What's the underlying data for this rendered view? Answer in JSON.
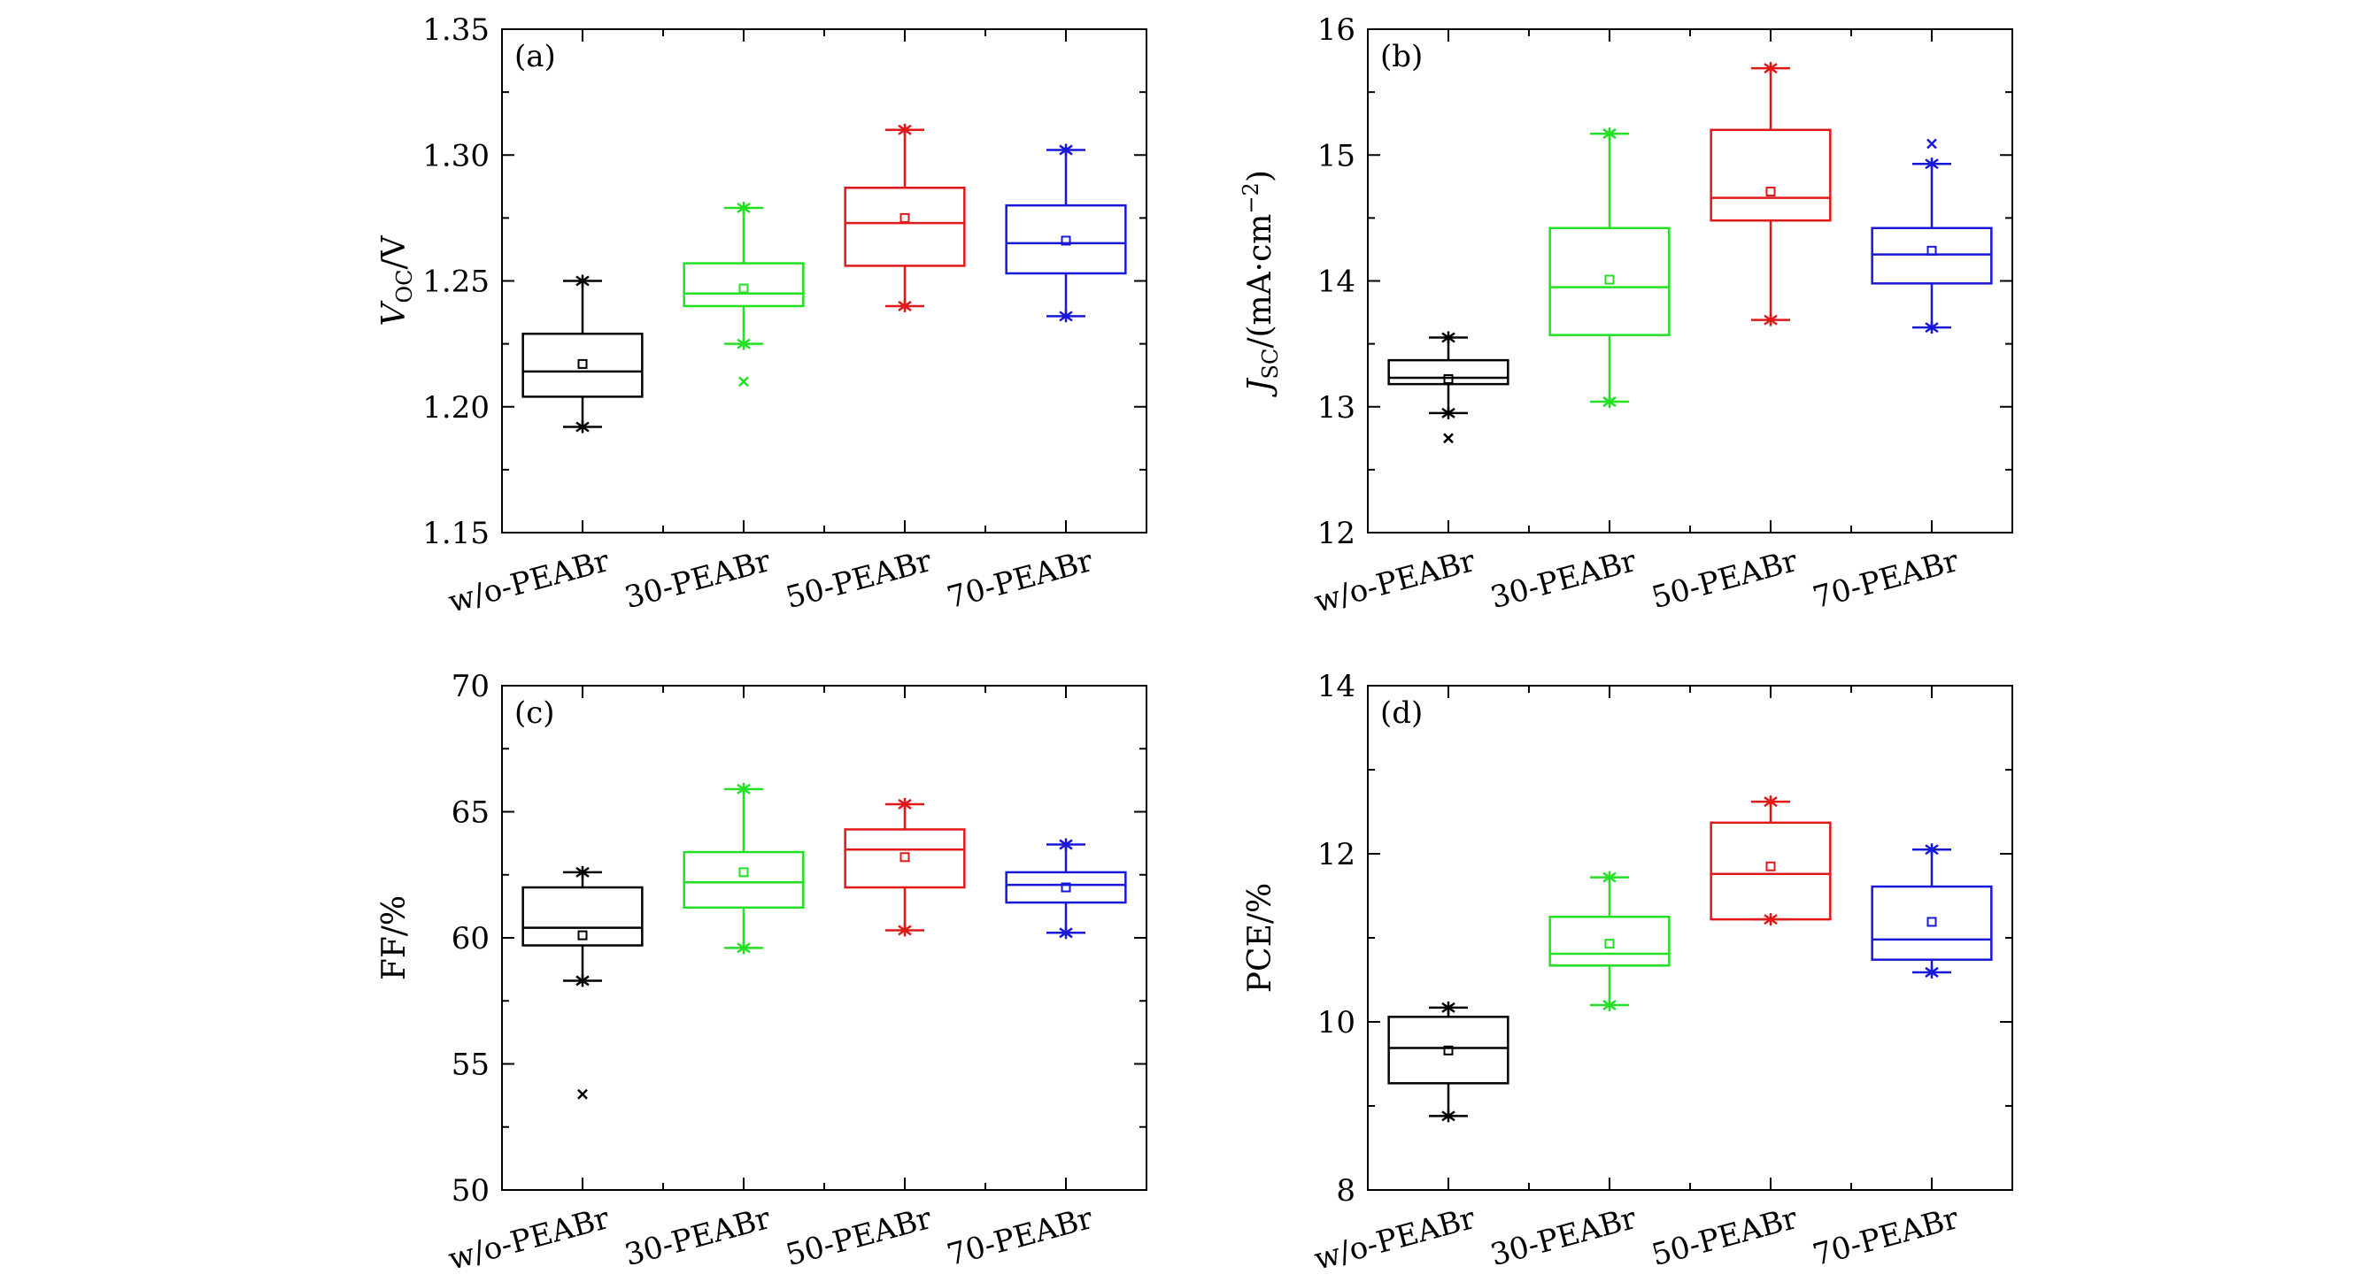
{
  "chart_data": [
    {
      "panel": "(a)",
      "type": "box",
      "ylabel_main": "V",
      "ylabel_sub": "OC",
      "ylabel_rest": "/V",
      "ylim": [
        1.15,
        1.35
      ],
      "yticks": [
        "1.15",
        "1.20",
        "1.25",
        "1.30",
        "1.35"
      ],
      "ytick_values": [
        1.15,
        1.2,
        1.25,
        1.3,
        1.35
      ],
      "categories": [
        "w/o-PEABr",
        "30-PEABr",
        "50-PEABr",
        "70-PEABr"
      ],
      "colors": [
        "#000000",
        "#22e022",
        "#e01818",
        "#1818d8"
      ],
      "boxes": [
        {
          "q1": 1.204,
          "median": 1.214,
          "q3": 1.229,
          "mean": 1.217,
          "whisker_low": 1.192,
          "whisker_high": 1.25,
          "outliers": []
        },
        {
          "q1": 1.24,
          "median": 1.245,
          "q3": 1.257,
          "mean": 1.247,
          "whisker_low": 1.225,
          "whisker_high": 1.279,
          "outliers": [
            1.21
          ]
        },
        {
          "q1": 1.256,
          "median": 1.273,
          "q3": 1.287,
          "mean": 1.275,
          "whisker_low": 1.24,
          "whisker_high": 1.31,
          "outliers": []
        },
        {
          "q1": 1.253,
          "median": 1.265,
          "q3": 1.28,
          "mean": 1.266,
          "whisker_low": 1.236,
          "whisker_high": 1.302,
          "outliers": []
        }
      ]
    },
    {
      "panel": "(b)",
      "type": "box",
      "ylabel_main": "J",
      "ylabel_sub": "SC",
      "ylabel_rest": "/(mA·cm",
      "ylabel_sup": "−2",
      "ylabel_tail": ")",
      "ylim": [
        12,
        16
      ],
      "yticks": [
        "12",
        "13",
        "14",
        "15",
        "16"
      ],
      "ytick_values": [
        12,
        13,
        14,
        15,
        16
      ],
      "categories": [
        "w/o-PEABr",
        "30-PEABr",
        "50-PEABr",
        "70-PEABr"
      ],
      "colors": [
        "#000000",
        "#22e022",
        "#e01818",
        "#1818d8"
      ],
      "boxes": [
        {
          "q1": 13.18,
          "median": 13.23,
          "q3": 13.37,
          "mean": 13.22,
          "whisker_low": 12.95,
          "whisker_high": 13.55,
          "outliers": [
            12.75
          ]
        },
        {
          "q1": 13.57,
          "median": 13.95,
          "q3": 14.42,
          "mean": 14.01,
          "whisker_low": 13.04,
          "whisker_high": 15.17,
          "outliers": []
        },
        {
          "q1": 14.48,
          "median": 14.66,
          "q3": 15.2,
          "mean": 14.71,
          "whisker_low": 13.69,
          "whisker_high": 15.69,
          "outliers": []
        },
        {
          "q1": 13.98,
          "median": 14.21,
          "q3": 14.42,
          "mean": 14.24,
          "whisker_low": 13.63,
          "whisker_high": 14.93,
          "outliers": [
            15.09
          ]
        }
      ]
    },
    {
      "panel": "(c)",
      "type": "box",
      "ylabel_main": "FF/%",
      "ylim": [
        50,
        70
      ],
      "yticks": [
        "50",
        "55",
        "60",
        "65",
        "70"
      ],
      "ytick_values": [
        50,
        55,
        60,
        65,
        70
      ],
      "categories": [
        "w/o-PEABr",
        "30-PEABr",
        "50-PEABr",
        "70-PEABr"
      ],
      "colors": [
        "#000000",
        "#22e022",
        "#e01818",
        "#1818d8"
      ],
      "boxes": [
        {
          "q1": 59.7,
          "median": 60.4,
          "q3": 62.0,
          "mean": 60.1,
          "whisker_low": 58.3,
          "whisker_high": 62.6,
          "outliers": [
            53.8
          ]
        },
        {
          "q1": 61.2,
          "median": 62.2,
          "q3": 63.4,
          "mean": 62.6,
          "whisker_low": 59.6,
          "whisker_high": 65.9,
          "outliers": []
        },
        {
          "q1": 62.0,
          "median": 63.5,
          "q3": 64.3,
          "mean": 63.2,
          "whisker_low": 60.3,
          "whisker_high": 65.3,
          "outliers": []
        },
        {
          "q1": 61.4,
          "median": 62.1,
          "q3": 62.6,
          "mean": 62.0,
          "whisker_low": 60.2,
          "whisker_high": 63.7,
          "outliers": []
        }
      ]
    },
    {
      "panel": "(d)",
      "type": "box",
      "ylabel_main": "PCE/%",
      "ylim": [
        8,
        14
      ],
      "yticks": [
        "8",
        "10",
        "12",
        "14"
      ],
      "ytick_values": [
        8,
        10,
        12,
        14
      ],
      "categories": [
        "w/o-PEABr",
        "30-PEABr",
        "50-PEABr",
        "70-PEABr"
      ],
      "colors": [
        "#000000",
        "#22e022",
        "#e01818",
        "#1818d8"
      ],
      "boxes": [
        {
          "q1": 9.27,
          "median": 9.69,
          "q3": 10.06,
          "mean": 9.66,
          "whisker_low": 8.88,
          "whisker_high": 10.17,
          "outliers": []
        },
        {
          "q1": 10.67,
          "median": 10.81,
          "q3": 11.25,
          "mean": 10.93,
          "whisker_low": 10.2,
          "whisker_high": 11.72,
          "outliers": []
        },
        {
          "q1": 11.22,
          "median": 11.76,
          "q3": 12.37,
          "mean": 11.85,
          "whisker_low": 11.22,
          "whisker_high": 12.62,
          "outliers": []
        },
        {
          "q1": 10.74,
          "median": 10.98,
          "q3": 11.61,
          "mean": 11.19,
          "whisker_low": 10.59,
          "whisker_high": 12.05,
          "outliers": []
        }
      ]
    }
  ]
}
